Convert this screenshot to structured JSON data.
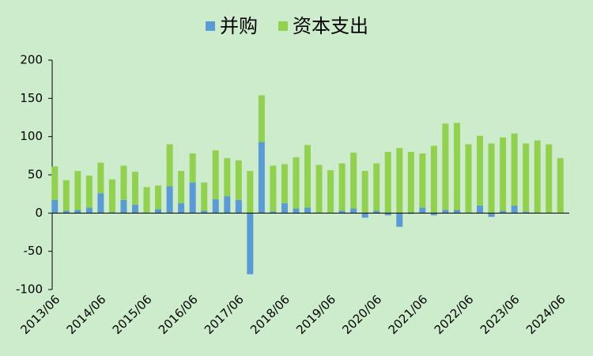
{
  "chart_data": {
    "type": "bar",
    "stacked": true,
    "categories": [
      "2013/06",
      null,
      null,
      null,
      "2014/06",
      null,
      null,
      null,
      "2015/06",
      null,
      null,
      null,
      "2016/06",
      null,
      null,
      null,
      "2017/06",
      null,
      null,
      null,
      "2018/06",
      null,
      null,
      null,
      "2019/06",
      null,
      null,
      null,
      "2020/06",
      null,
      null,
      null,
      "2021/06",
      null,
      null,
      null,
      "2022/06",
      null,
      null,
      null,
      "2023/06",
      null,
      null,
      null,
      "2024/06"
    ],
    "series": [
      {
        "name": "并购",
        "color": "#5b9bd5",
        "values": [
          17,
          3,
          4,
          7,
          26,
          1,
          17,
          11,
          0,
          5,
          35,
          13,
          40,
          3,
          18,
          22,
          17,
          -80,
          93,
          2,
          13,
          6,
          7,
          0,
          0,
          3,
          6,
          -6,
          3,
          -3,
          -18,
          -1,
          7,
          -3,
          4,
          4,
          0,
          10,
          -5,
          3,
          10,
          2,
          0,
          0,
          0
        ]
      },
      {
        "name": "资本支出",
        "color": "#92d050",
        "values": [
          44,
          40,
          51,
          42,
          40,
          43,
          45,
          43,
          34,
          31,
          55,
          42,
          38,
          37,
          64,
          50,
          52,
          55,
          61,
          60,
          51,
          67,
          82,
          63,
          56,
          62,
          73,
          55,
          62,
          80,
          85,
          80,
          71,
          88,
          113,
          114,
          90,
          91,
          91,
          96,
          94,
          89,
          95,
          90,
          72
        ]
      }
    ],
    "ylim": [
      -100,
      200
    ],
    "yticks": [
      -100,
      -50,
      0,
      50,
      100,
      150,
      200
    ],
    "legend": "top"
  }
}
